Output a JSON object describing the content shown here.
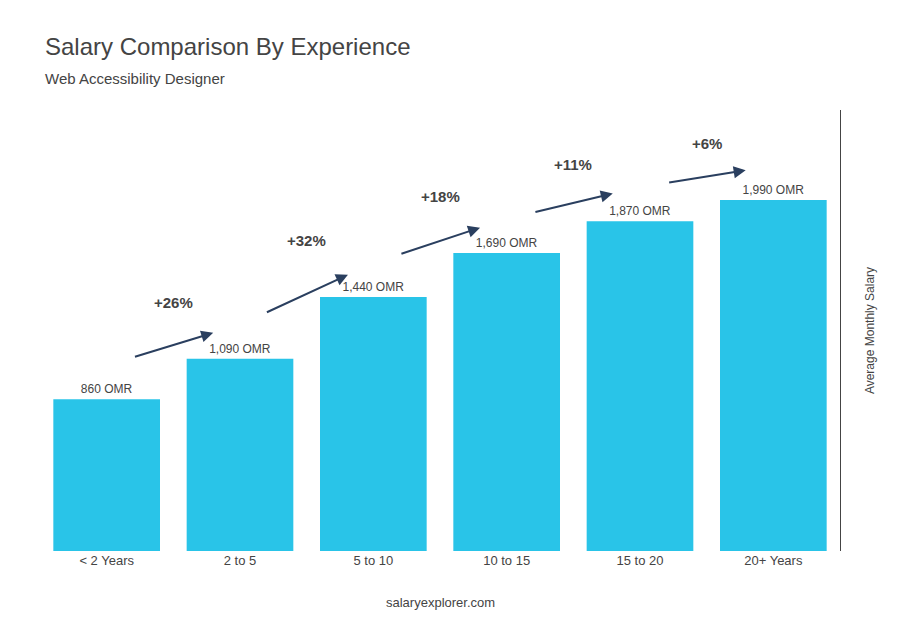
{
  "chart_data": {
    "type": "bar",
    "title": "Salary Comparison By Experience",
    "subtitle": "Web Accessibility Designer",
    "categories": [
      "< 2 Years",
      "2 to 5",
      "5 to 10",
      "10 to 15",
      "15 to 20",
      "20+ Years"
    ],
    "values": [
      860,
      1090,
      1440,
      1690,
      1870,
      1990
    ],
    "value_labels": [
      "860 OMR",
      "1,090 OMR",
      "1,440 OMR",
      "1,690 OMR",
      "1,870 OMR",
      "1,990 OMR"
    ],
    "data_labels": true,
    "color": "#29C4E8",
    "ylabel": "Average Monthly Salary",
    "ylim": [
      0,
      2500
    ],
    "grid": false,
    "tick_labels": "x",
    "annotations": [
      {
        "text": "+26%",
        "from": "< 2 Years",
        "to": "2 to 5"
      },
      {
        "text": "+32%",
        "from": "2 to 5",
        "to": "5 to 10"
      },
      {
        "text": "+18%",
        "from": "5 to 10",
        "to": "10 to 15"
      },
      {
        "text": "+11%",
        "from": "10 to 15",
        "to": "15 to 20"
      },
      {
        "text": "+6%",
        "from": "15 to 20",
        "to": "20+ Years"
      }
    ],
    "watermark": "salaryexplorer.com"
  }
}
